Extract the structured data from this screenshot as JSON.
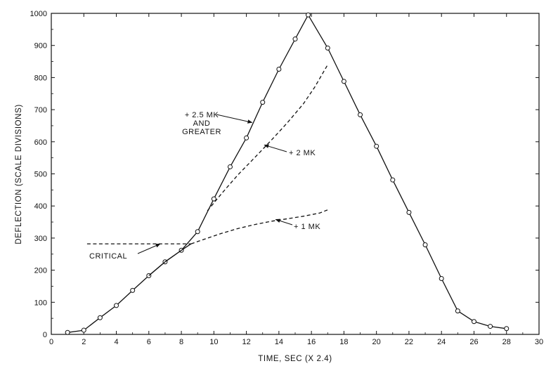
{
  "chart_data": {
    "type": "line",
    "xlabel": "TIME, SEC (X 2.4)",
    "ylabel": "DEFLECTION (SCALE DIVISIONS)",
    "xlim": [
      0,
      30
    ],
    "ylim": [
      0,
      1000
    ],
    "xticks": [
      "0",
      "2",
      "4",
      "6",
      "8",
      "10",
      "12",
      "14",
      "16",
      "18",
      "20",
      "22",
      "24",
      "26",
      "28",
      "30"
    ],
    "yticks": [
      "0",
      "100",
      "200",
      "300",
      "400",
      "500",
      "600",
      "700",
      "800",
      "900",
      "1000"
    ],
    "grid": false,
    "series": [
      {
        "name": "+2.5 MK AND GREATER",
        "style": "solid",
        "markers": true,
        "x": [
          1,
          2,
          3,
          4,
          5,
          6,
          7,
          8,
          9,
          10,
          11,
          12,
          13,
          14,
          15,
          15.8,
          17,
          18,
          19,
          20,
          21,
          22,
          23,
          24,
          25,
          26,
          27,
          28
        ],
        "y": [
          6,
          13,
          52,
          90,
          137,
          183,
          226,
          262,
          320,
          422,
          522,
          612,
          723,
          826,
          920,
          995,
          892,
          788,
          684,
          586,
          481,
          380,
          279,
          174,
          73,
          40,
          25,
          18
        ]
      },
      {
        "name": "+2 MK",
        "style": "dashed",
        "markers": false,
        "x": [
          9.6,
          10.5,
          11.5,
          12.5,
          13.5,
          14.5,
          15.5,
          16.2,
          17
        ],
        "y": [
          385,
          440,
          498,
          550,
          603,
          658,
          718,
          770,
          840
        ]
      },
      {
        "name": "+1 MK",
        "style": "dashed",
        "markers": false,
        "x": [
          8.6,
          9.5,
          10.5,
          11.5,
          12.5,
          13.5,
          14.5,
          15.5,
          16.5,
          17
        ],
        "y": [
          282,
          298,
          315,
          330,
          342,
          352,
          360,
          368,
          378,
          388
        ]
      },
      {
        "name": "CRITICAL",
        "style": "dashed",
        "markers": false,
        "x": [
          2.2,
          8.6
        ],
        "y": [
          282,
          282
        ]
      },
      {
        "name": "",
        "style": "solid",
        "markers": false,
        "x": [
          6,
          7,
          8,
          8.6
        ],
        "y": [
          183,
          226,
          262,
          282
        ]
      }
    ],
    "annotations": [
      {
        "id": "a25",
        "lines": [
          "+ 2.5 MK",
          "AND",
          "GREATER"
        ],
        "arrow_to": [
          12.35,
          660
        ]
      },
      {
        "id": "a2",
        "lines": [
          "+ 2 MK"
        ],
        "arrow_to": [
          13.1,
          590
        ]
      },
      {
        "id": "a1",
        "lines": [
          "+ 1 MK"
        ],
        "arrow_to": [
          13.8,
          358
        ]
      },
      {
        "id": "acrit",
        "lines": [
          "CRITICAL"
        ],
        "arrow_to": [
          6.7,
          282
        ]
      }
    ]
  }
}
